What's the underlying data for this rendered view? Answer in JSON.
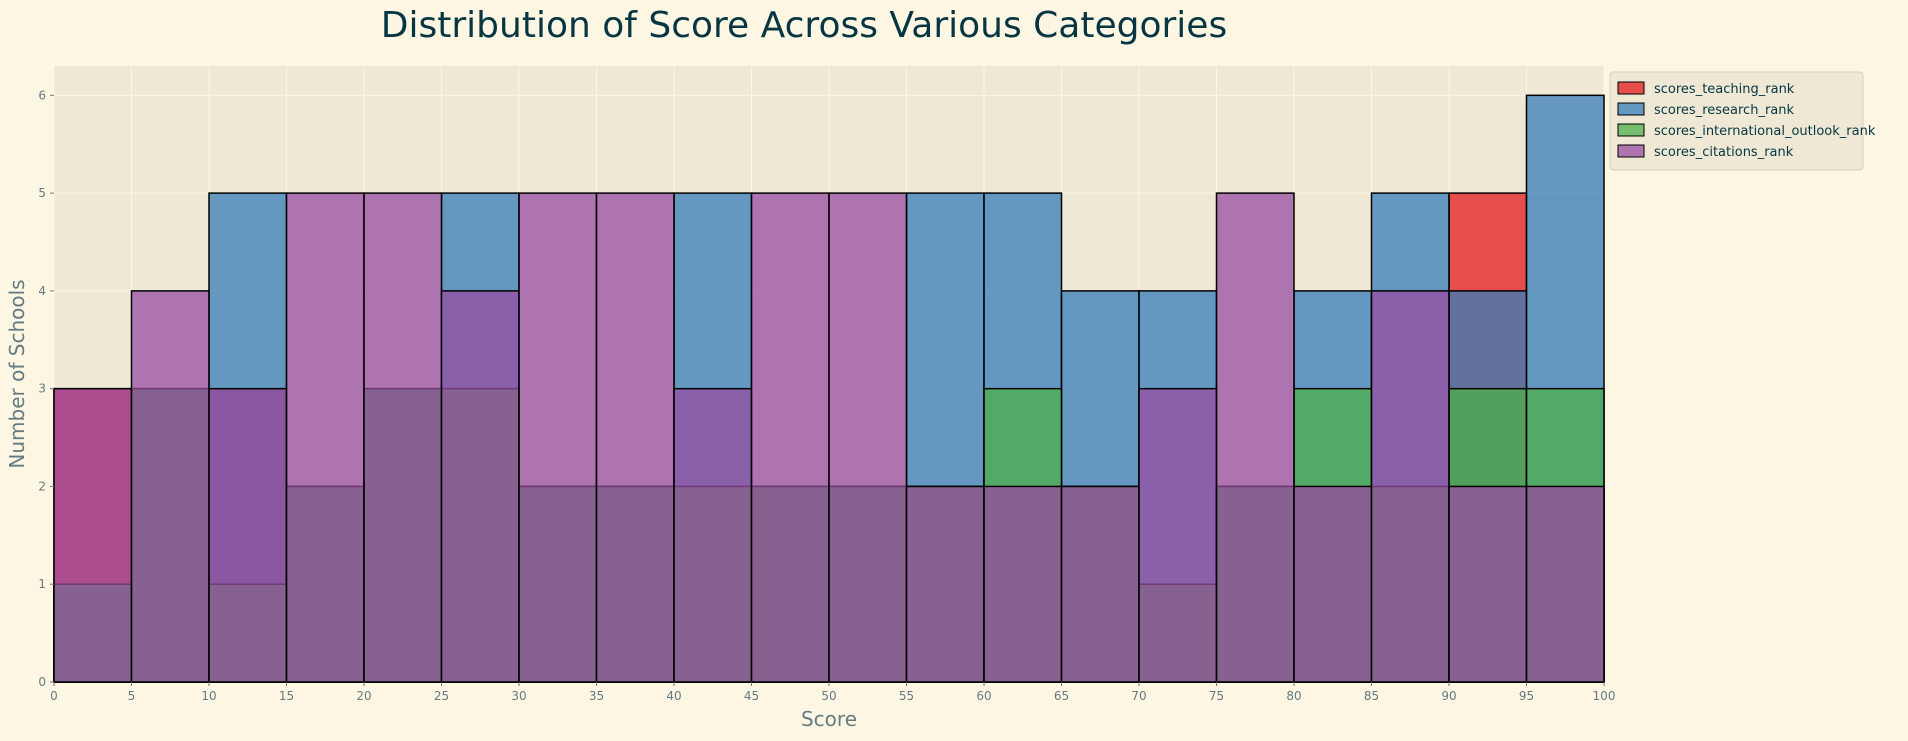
{
  "chart_data": {
    "type": "bar",
    "title": "Distribution of Score Across Various Categories",
    "xlabel": "Score",
    "ylabel": "Number of Schools",
    "xlim": [
      0,
      100
    ],
    "ylim": [
      0,
      6.3
    ],
    "bin_edges": [
      0,
      5,
      10,
      15,
      20,
      25,
      30,
      35,
      40,
      45,
      50,
      55,
      60,
      65,
      70,
      75,
      80,
      85,
      90,
      95,
      100
    ],
    "x_ticks": [
      "0",
      "5",
      "10",
      "15",
      "20",
      "25",
      "30",
      "35",
      "40",
      "45",
      "50",
      "55",
      "60",
      "65",
      "70",
      "75",
      "80",
      "85",
      "90",
      "95",
      "100"
    ],
    "y_ticks": [
      "0",
      "1",
      "2",
      "3",
      "4",
      "5",
      "6"
    ],
    "grid": true,
    "legend_position": "outside top-right",
    "series": [
      {
        "name": "scores_teaching_rank",
        "color": "#e41a1c",
        "values": [
          3,
          3,
          3,
          2,
          3,
          3,
          2,
          2,
          2,
          2,
          2,
          2,
          2,
          2,
          1,
          2,
          2,
          2,
          5,
          2
        ]
      },
      {
        "name": "scores_research_rank",
        "color": "#377eb8",
        "values": [
          1,
          3,
          5,
          2,
          3,
          5,
          2,
          2,
          5,
          2,
          2,
          5,
          5,
          4,
          4,
          2,
          4,
          5,
          4,
          6
        ]
      },
      {
        "name": "scores_international_outlook_rank",
        "color": "#4daf4a",
        "values": [
          1,
          3,
          1,
          2,
          3,
          3,
          2,
          2,
          2,
          2,
          2,
          2,
          3,
          2,
          1,
          2,
          3,
          2,
          3,
          3
        ]
      },
      {
        "name": "scores_citations_rank",
        "color": "#984ea3",
        "values": [
          3,
          4,
          3,
          5,
          5,
          4,
          5,
          5,
          3,
          5,
          5,
          2,
          2,
          2,
          3,
          5,
          2,
          4,
          2,
          2
        ]
      }
    ]
  }
}
